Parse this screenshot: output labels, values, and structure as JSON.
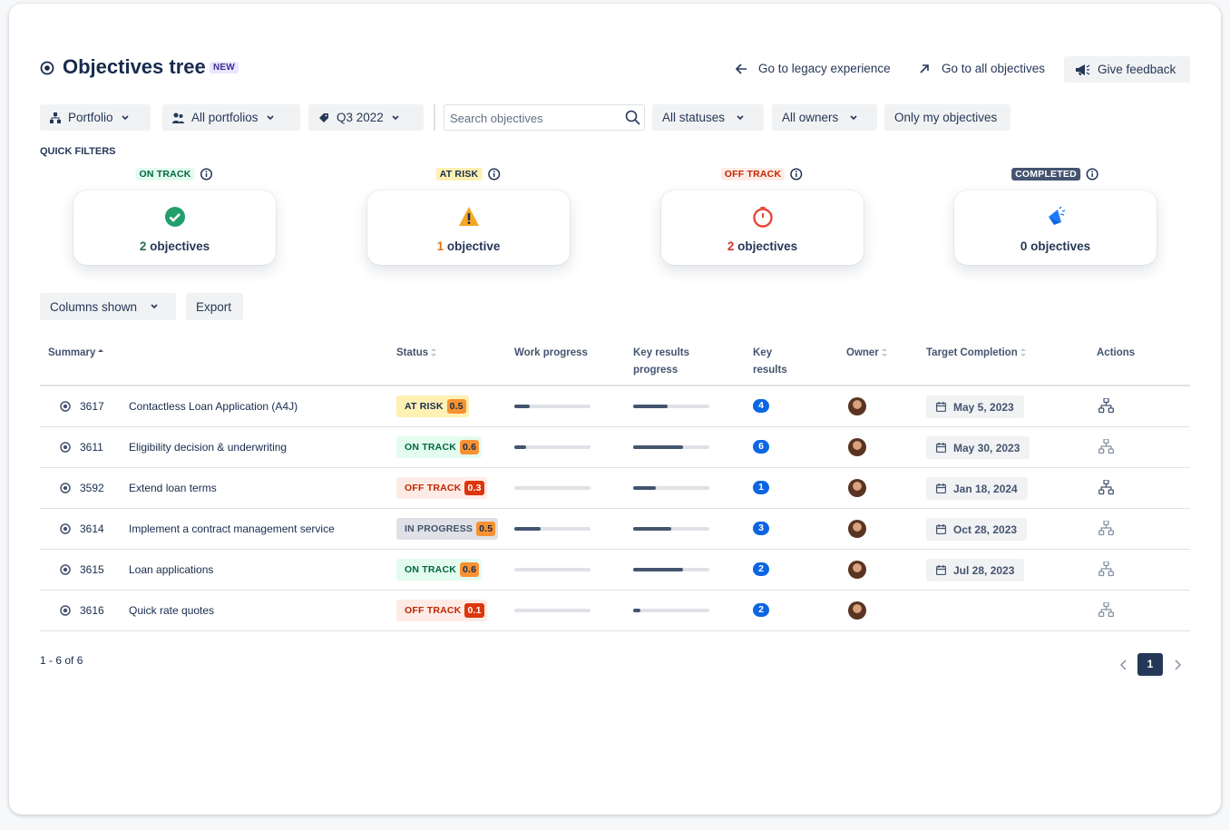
{
  "header": {
    "title": "Objectives tree",
    "badge": "NEW",
    "legacy_link": "Go to legacy experience",
    "all_link": "Go to all objectives",
    "feedback": "Give feedback"
  },
  "filters": {
    "portfolio": "Portfolio",
    "portfolios": "All portfolios",
    "period": "Q3 2022",
    "search_placeholder": "Search objectives",
    "statuses": "All statuses",
    "owners": "All owners",
    "mine": "Only my objectives"
  },
  "quick_filters": {
    "title": "QUICK FILTERS",
    "cards": [
      {
        "status": "ON TRACK",
        "count": 2,
        "unit": "objectives"
      },
      {
        "status": "AT RISK",
        "count": 1,
        "unit": "objective"
      },
      {
        "status": "OFF TRACK",
        "count": 2,
        "unit": "objectives"
      },
      {
        "status": "COMPLETED",
        "count": 0,
        "unit": "objectives"
      }
    ]
  },
  "toolbar": {
    "columns": "Columns shown",
    "export": "Export"
  },
  "table": {
    "columns": [
      "Summary",
      "Status",
      "Work progress",
      "Key results progress",
      "Key results",
      "Owner",
      "Target Completion",
      "Actions"
    ],
    "rows": [
      {
        "id": "3617",
        "summary": "Contactless Loan Application (A4J)",
        "status": "AT RISK",
        "score": 0.5,
        "work_progress": 20,
        "kr_progress": 45,
        "key_results": 4,
        "target": "May 5, 2023"
      },
      {
        "id": "3611",
        "summary": "Eligibility decision & underwriting",
        "status": "ON TRACK",
        "score": 0.6,
        "work_progress": 15,
        "kr_progress": 65,
        "key_results": 6,
        "target": "May 30, 2023"
      },
      {
        "id": "3592",
        "summary": "Extend loan terms",
        "status": "OFF TRACK",
        "score": 0.3,
        "work_progress": 0,
        "kr_progress": 30,
        "key_results": 1,
        "target": "Jan 18, 2024"
      },
      {
        "id": "3614",
        "summary": "Implement a contract management service",
        "status": "IN PROGRESS",
        "score": 0.5,
        "work_progress": 35,
        "kr_progress": 50,
        "key_results": 3,
        "target": "Oct 28, 2023"
      },
      {
        "id": "3615",
        "summary": "Loan applications",
        "status": "ON TRACK",
        "score": 0.6,
        "work_progress": 0,
        "kr_progress": 65,
        "key_results": 2,
        "target": "Jul 28, 2023"
      },
      {
        "id": "3616",
        "summary": "Quick rate quotes",
        "status": "OFF TRACK",
        "score": 0.1,
        "work_progress": 0,
        "kr_progress": 10,
        "key_results": 2,
        "target": null
      }
    ]
  },
  "pagination": {
    "range": "1 - 6 of 6",
    "page": "1"
  }
}
